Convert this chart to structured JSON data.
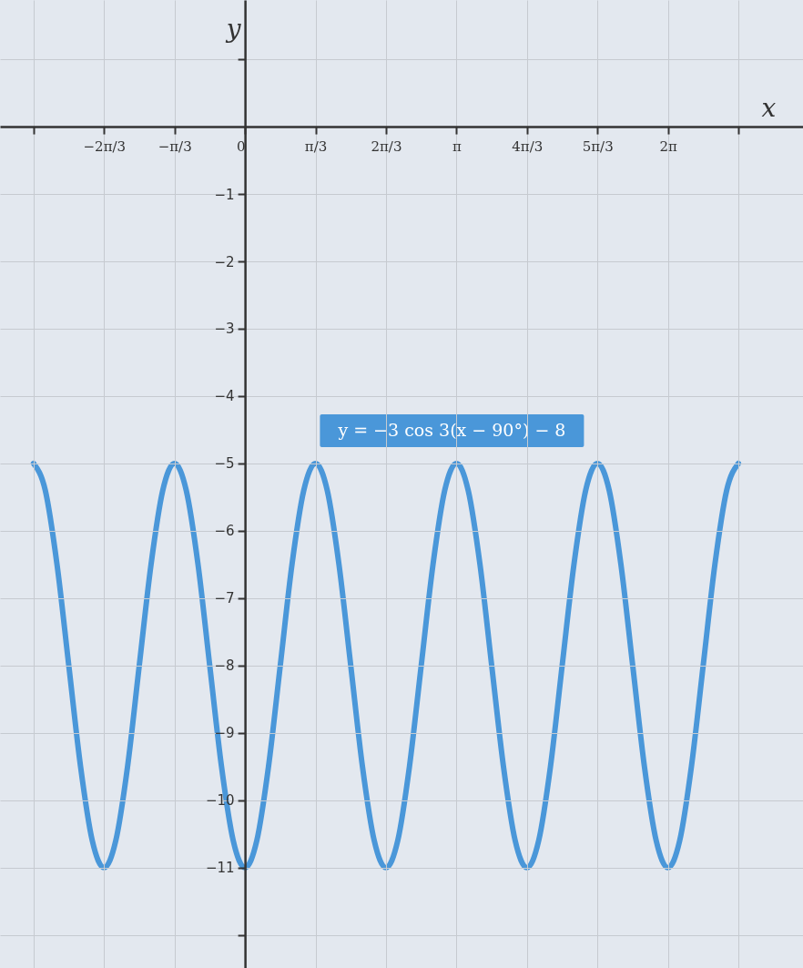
{
  "chart_data": {
    "type": "line",
    "xlabel": "x",
    "ylabel": "y",
    "x": [
      -3.142,
      -2.967,
      -2.793,
      -2.618,
      -2.443,
      -2.269,
      -2.094,
      -1.92,
      -1.745,
      -1.571,
      -1.396,
      -1.222,
      -1.047,
      -0.873,
      -0.698,
      -0.524,
      -0.349,
      -0.175,
      0,
      0.175,
      0.349,
      0.524,
      0.698,
      0.873,
      1.047,
      1.222,
      1.396,
      1.571,
      1.745,
      1.92,
      2.094,
      2.269,
      2.443,
      2.618,
      2.793,
      2.967,
      3.142,
      3.316,
      3.491,
      3.665,
      3.84,
      4.014,
      4.189,
      4.363,
      4.538,
      4.712,
      4.887,
      5.061,
      5.236,
      5.411,
      5.585,
      5.76,
      5.934,
      6.109,
      6.283,
      6.458,
      6.632,
      6.807,
      6.981,
      7.156,
      7.33
    ],
    "series": [
      {
        "color": "#4a97d9",
        "values": [
          -5,
          -5.4,
          -6.5,
          -8,
          -9.5,
          -10.6,
          -11,
          -10.6,
          -9.5,
          -8,
          -6.5,
          -5.4,
          -5,
          -5.4,
          -6.5,
          -8,
          -9.5,
          -10.6,
          -11,
          -10.6,
          -9.5,
          -8,
          -6.5,
          -5.4,
          -5,
          -5.4,
          -6.5,
          -8,
          -9.5,
          -10.6,
          -11,
          -10.6,
          -9.5,
          -8,
          -6.5,
          -5.4,
          -5,
          -5.4,
          -6.5,
          -8,
          -9.5,
          -10.6,
          -11,
          -10.6,
          -9.5,
          -8,
          -6.5,
          -5.4,
          -5,
          -5.4,
          -6.5,
          -8,
          -9.5,
          -10.6,
          -11,
          -10.6,
          -9.5,
          -8,
          -6.5,
          -5.4,
          -5
        ]
      }
    ],
    "xlim": [
      -3.64,
      8.29
    ],
    "ylim": [
      -12.49,
      1.88
    ],
    "xticks": [
      {
        "value": -3.142,
        "label": null
      },
      {
        "value": -2.094,
        "label": "−2π/3"
      },
      {
        "value": -1.047,
        "label": "−π/3"
      },
      {
        "value": 0,
        "label": "0"
      },
      {
        "value": 1.047,
        "label": "π/3"
      },
      {
        "value": 2.094,
        "label": "2π/3"
      },
      {
        "value": 3.142,
        "label": "π"
      },
      {
        "value": 4.189,
        "label": "4π/3"
      },
      {
        "value": 5.236,
        "label": "5π/3"
      },
      {
        "value": 6.283,
        "label": "2π"
      },
      {
        "value": 7.33,
        "label": null
      }
    ],
    "yticks": [
      {
        "value": 1,
        "label": null
      },
      {
        "value": -1,
        "label": "−1"
      },
      {
        "value": -2,
        "label": "−2"
      },
      {
        "value": -3,
        "label": "−3"
      },
      {
        "value": -4,
        "label": "−4"
      },
      {
        "value": -5,
        "label": "−5"
      },
      {
        "value": -6,
        "label": "−6"
      },
      {
        "value": -7,
        "label": "−7"
      },
      {
        "value": -8,
        "label": "−8"
      },
      {
        "value": -9,
        "label": "−9"
      },
      {
        "value": -10,
        "label": "−10"
      },
      {
        "value": -11,
        "label": "−11"
      },
      {
        "value": -12,
        "label": null
      }
    ],
    "grid": true,
    "marker": "none",
    "line_style": "solid",
    "annotations": [
      {
        "text": "y = −3 cos 3(x − 90°) − 8",
        "x": 3.142,
        "y": -5
      }
    ]
  }
}
